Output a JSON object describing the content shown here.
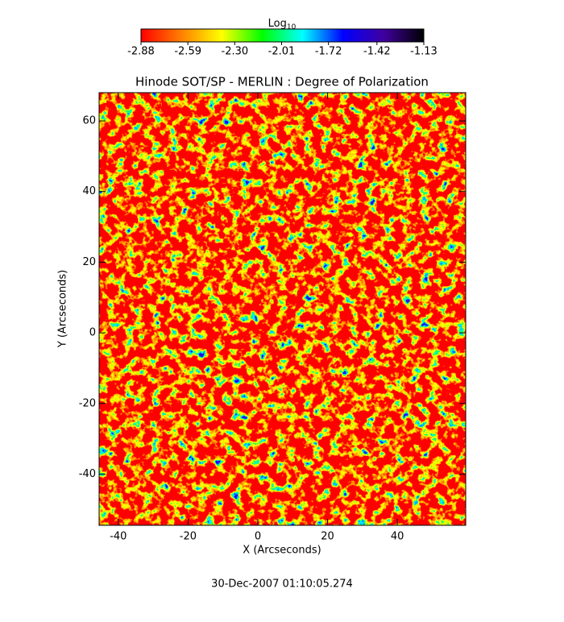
{
  "chart_data": {
    "type": "heatmap",
    "title": "Hinode SOT/SP - MERLIN : Degree of Polarization",
    "x_label": "X (Arcseconds)",
    "y_label": "Y (Arcseconds)",
    "xlim": [
      -45.5,
      59.6
    ],
    "xticks": [
      -40,
      -20,
      0,
      20,
      40
    ],
    "ylim": [
      -54.5,
      68
    ],
    "yticks": [
      -40,
      -20,
      0,
      20,
      40,
      60
    ],
    "colorbar": {
      "label": "Log",
      "label_subscript": "10",
      "lim": [
        -2.88,
        -1.13
      ],
      "ticks": [
        -2.88,
        -2.59,
        {
          "value": -2.3,
          "label": "-2.30"
        },
        -2.01,
        -1.72,
        -1.42,
        -1.13
      ],
      "colors": [
        "#ff0000",
        "#ff8000",
        "#ffff00",
        "#00ff00",
        "#00ffff",
        "#0000ff",
        "#4000a0",
        "#000000"
      ]
    },
    "footer": "30-Dec-2007 01:10:05.274"
  }
}
